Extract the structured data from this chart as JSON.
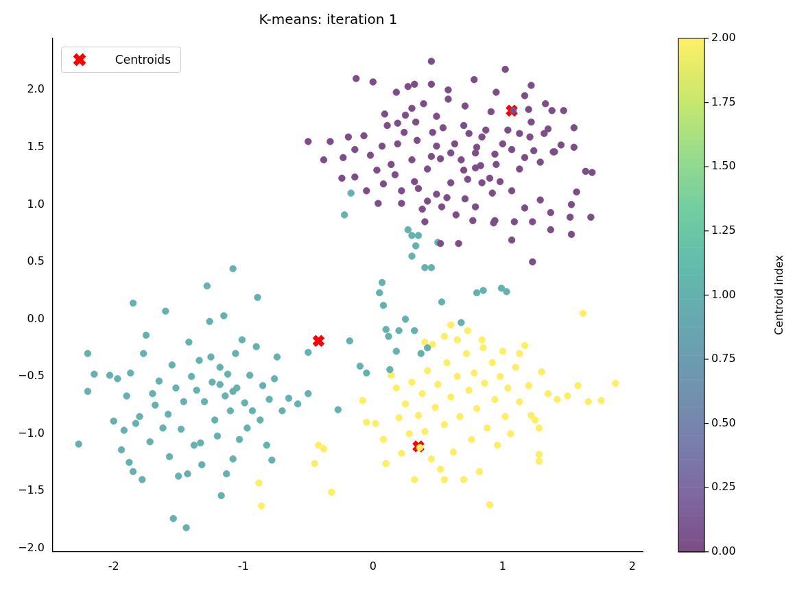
{
  "chart_data": {
    "type": "scatter",
    "title": "K-means: iteration 1",
    "clabel": "Centroid index",
    "clim": [
      0,
      2
    ],
    "cticks": [
      {
        "value": 0,
        "label": "0.00"
      },
      {
        "value": 0.25,
        "label": "0.25"
      },
      {
        "value": 0.5,
        "label": "0.50"
      },
      {
        "value": 0.75,
        "label": "0.75"
      },
      {
        "value": 1,
        "label": "1.00"
      },
      {
        "value": 1.25,
        "label": "1.25"
      },
      {
        "value": 1.5,
        "label": "1.50"
      },
      {
        "value": 1.75,
        "label": "1.75"
      },
      {
        "value": 2,
        "label": "2.00"
      }
    ],
    "xlim": [
      -2.47,
      2.08
    ],
    "ylim": [
      -2.03,
      2.45
    ],
    "xticks": [
      -2,
      -1,
      0,
      1,
      2
    ],
    "yticks": [
      {
        "value": -2,
        "label": "−2.0"
      },
      {
        "value": -1.5,
        "label": "−1.5"
      },
      {
        "value": -1,
        "label": "−1.0"
      },
      {
        "value": -0.5,
        "label": "−0.5"
      },
      {
        "value": 0,
        "label": "0.0"
      },
      {
        "value": 0.5,
        "label": "0.5"
      },
      {
        "value": 1,
        "label": "1.0"
      },
      {
        "value": 1.5,
        "label": "1.5"
      },
      {
        "value": 2,
        "label": "2.0"
      }
    ],
    "legend": "top left",
    "grid": false,
    "series": [
      {
        "marker": "circle",
        "color": "#7c4d87",
        "x": [
          -0.13,
          0.0,
          0.45,
          1.02,
          0.18,
          0.32,
          0.45,
          0.58,
          0.78,
          0.95,
          1.22,
          1.33,
          1.38,
          1.47,
          1.55,
          1.35,
          1.22,
          1.08,
          0.91,
          0.71,
          0.58,
          0.39,
          0.25,
          0.09,
          0.33,
          0.46,
          0.54,
          0.7,
          0.87,
          1.04,
          1.21,
          1.32,
          1.45,
          1.39,
          1.24,
          1.07,
          0.94,
          0.79,
          0.63,
          0.49,
          0.34,
          0.19,
          0.07,
          -0.07,
          -0.19,
          -0.33,
          -0.5,
          -0.38,
          -0.23,
          -0.14,
          -0.02,
          0.14,
          0.3,
          0.42,
          0.52,
          0.68,
          0.83,
          0.95,
          1.13,
          1.29,
          1.4,
          1.55,
          1.69,
          1.53,
          1.52,
          1.37,
          1.29,
          1.17,
          1.07,
          0.98,
          0.84,
          0.73,
          0.6,
          0.49,
          0.35,
          0.22,
          0.08,
          -0.05,
          -0.24,
          -0.14,
          0.04,
          0.22,
          0.38,
          0.53,
          0.64,
          0.79,
          0.94,
          1.09,
          1.23,
          1.07,
          0.93,
          0.77,
          0.66,
          0.52,
          0.4,
          1.68,
          1.53,
          1.37,
          1.23,
          1.57,
          1.64,
          1.13,
          0.92,
          0.71,
          0.57,
          0.42,
          0.32,
          0.17,
          0.03,
          0.9,
          0.79,
          0.84,
          0.74,
          1.0,
          1.17,
          1.2,
          1.17,
          0.27,
          0.3,
          0.49,
          0.19,
          0.11,
          0.24,
          0.8,
          0.6,
          0.45,
          0.7
        ],
        "values": [
          2.1,
          2.07,
          2.25,
          2.18,
          1.98,
          2.05,
          2.05,
          2.0,
          2.09,
          1.98,
          2.04,
          1.88,
          1.82,
          1.82,
          1.67,
          1.66,
          1.72,
          1.82,
          1.81,
          1.86,
          1.92,
          1.88,
          1.78,
          1.79,
          1.72,
          1.63,
          1.67,
          1.69,
          1.65,
          1.65,
          1.59,
          1.62,
          1.52,
          1.46,
          1.47,
          1.48,
          1.44,
          1.45,
          1.53,
          1.51,
          1.56,
          1.53,
          1.51,
          1.6,
          1.59,
          1.55,
          1.55,
          1.39,
          1.41,
          1.48,
          1.43,
          1.35,
          1.39,
          1.31,
          1.4,
          1.39,
          1.34,
          1.35,
          1.31,
          1.37,
          1.46,
          1.5,
          1.28,
          1.0,
          0.89,
          0.93,
          1.04,
          0.97,
          1.12,
          1.2,
          1.19,
          1.22,
          1.19,
          1.09,
          1.14,
          1.12,
          1.18,
          1.12,
          1.23,
          1.24,
          1.01,
          1.01,
          0.96,
          0.98,
          0.91,
          0.98,
          0.86,
          0.85,
          0.5,
          0.69,
          0.84,
          0.86,
          0.66,
          0.66,
          0.85,
          0.89,
          0.74,
          0.78,
          0.85,
          1.11,
          1.29,
          1.62,
          1.1,
          1.05,
          1.06,
          1.03,
          1.2,
          1.26,
          1.3,
          1.23,
          1.32,
          1.59,
          1.62,
          1.53,
          1.41,
          1.83,
          1.95,
          2.03,
          1.84,
          1.77,
          1.71,
          1.69,
          1.63,
          1.5,
          1.45,
          1.42,
          1.3
        ],
        "cvalues": [
          0,
          0,
          0,
          0,
          0,
          0,
          0,
          0,
          0,
          0,
          0,
          0,
          0,
          0,
          0,
          0,
          0,
          0,
          0,
          0,
          0,
          0,
          0,
          0,
          0,
          0,
          0,
          0,
          0,
          0,
          0,
          0,
          0,
          0,
          0,
          0,
          0,
          0,
          0,
          0,
          0,
          0,
          0,
          0,
          0,
          0,
          0,
          0,
          0,
          0,
          0,
          0,
          0,
          0,
          0,
          0,
          0,
          0,
          0,
          0,
          0,
          0,
          0,
          0,
          0,
          0,
          0,
          0,
          0,
          0,
          0,
          0,
          0,
          0,
          0,
          0,
          0,
          0,
          0,
          0,
          0,
          0,
          0,
          0,
          0,
          0,
          0,
          0,
          0,
          0,
          0,
          0,
          0,
          0,
          0,
          0,
          0,
          0,
          0,
          0,
          0,
          0,
          0,
          0,
          0,
          0,
          0,
          0,
          0,
          0,
          0,
          0,
          0,
          0,
          0,
          0,
          0,
          0,
          0,
          0,
          0,
          0,
          0,
          0,
          0,
          0,
          0
        ]
      },
      {
        "marker": "circle",
        "color": "#65b1af",
        "x": [
          -2.27,
          -2.2,
          -2.2,
          -2.15,
          -2.03,
          -2.0,
          -1.97,
          -1.94,
          -1.92,
          -1.9,
          -1.88,
          -1.87,
          -1.85,
          -1.83,
          -1.8,
          -1.78,
          -1.77,
          -1.75,
          -1.72,
          -1.7,
          -1.68,
          -1.65,
          -1.62,
          -1.6,
          -1.58,
          -1.57,
          -1.55,
          -1.52,
          -1.5,
          -1.48,
          -1.46,
          -1.44,
          -1.42,
          -1.4,
          -1.38,
          -1.36,
          -1.34,
          -1.32,
          -1.3,
          -1.28,
          -1.26,
          -1.24,
          -1.22,
          -1.2,
          -1.18,
          -1.17,
          -1.15,
          -1.14,
          -1.12,
          -1.1,
          -1.08,
          -1.06,
          -1.05,
          -1.03,
          -1.01,
          -0.99,
          -0.97,
          -0.95,
          -0.93,
          -0.9,
          -0.89,
          -0.87,
          -0.85,
          -0.82,
          -0.8,
          -0.78,
          -0.76,
          -0.74,
          -0.7,
          -0.65,
          -0.58,
          -0.5,
          -0.5,
          -1.54,
          -1.08,
          -1.13,
          -1.85,
          -1.43,
          -1.33,
          -1.25,
          -1.08,
          -1.18,
          -0.27,
          -0.22,
          -0.18,
          -0.1,
          -0.05,
          0.05,
          0.08,
          0.1,
          0.12,
          0.13,
          0.18,
          0.27,
          0.25,
          0.3,
          0.3,
          0.33,
          0.32,
          0.35,
          0.4,
          0.45,
          0.5,
          0.53,
          0.68,
          0.8,
          0.85,
          0.99,
          1.03,
          -0.17,
          0.07,
          0.37,
          0.42,
          0.2
        ],
        "values": [
          -1.09,
          -0.63,
          -0.3,
          -0.48,
          -0.49,
          -0.89,
          -0.52,
          -1.14,
          -0.97,
          -0.67,
          -1.25,
          -0.47,
          -1.33,
          -0.91,
          -0.85,
          -1.4,
          -0.3,
          -0.14,
          -1.07,
          -0.65,
          -0.75,
          -0.54,
          -0.95,
          0.07,
          -0.83,
          -1.2,
          -0.4,
          -0.6,
          -1.37,
          -0.96,
          -0.72,
          -1.82,
          -0.2,
          -0.5,
          -1.1,
          -0.62,
          -0.36,
          -1.27,
          -0.72,
          0.29,
          -0.02,
          -0.55,
          -0.88,
          -1.02,
          -0.42,
          -1.54,
          0.03,
          -0.67,
          -0.48,
          -0.8,
          -1.22,
          -0.3,
          -0.6,
          -1.05,
          -0.18,
          -0.73,
          -0.95,
          -0.49,
          -0.8,
          -0.24,
          0.19,
          -0.88,
          -0.58,
          -1.1,
          -0.7,
          -1.23,
          -0.52,
          -0.33,
          -0.8,
          -0.69,
          -0.74,
          -0.65,
          -0.29,
          -1.74,
          0.44,
          -1.35,
          0.14,
          -1.35,
          -1.08,
          -0.33,
          -0.63,
          -0.57,
          -0.79,
          0.91,
          -0.19,
          -0.41,
          -0.47,
          0.23,
          0.12,
          -0.09,
          -0.15,
          -0.44,
          -0.28,
          0.78,
          0.0,
          0.73,
          0.55,
          0.64,
          -0.1,
          0.73,
          0.45,
          0.45,
          0.67,
          0.15,
          -0.03,
          0.23,
          0.25,
          0.27,
          0.24,
          1.1,
          0.32,
          -0.3,
          -0.25,
          -0.1
        ],
        "cvalues": [
          1,
          1,
          1,
          1,
          1,
          1,
          1,
          1,
          1,
          1,
          1,
          1,
          1,
          1,
          1,
          1,
          1,
          1,
          1,
          1,
          1,
          1,
          1,
          1,
          1,
          1,
          1,
          1,
          1,
          1,
          1,
          1,
          1,
          1,
          1,
          1,
          1,
          1,
          1,
          1,
          1,
          1,
          1,
          1,
          1,
          1,
          1,
          1,
          1,
          1,
          1,
          1,
          1,
          1,
          1,
          1,
          1,
          1,
          1,
          1,
          1,
          1,
          1,
          1,
          1,
          1,
          1,
          1,
          1,
          1,
          1,
          1,
          1,
          1,
          1,
          1,
          1,
          1,
          1,
          1,
          1,
          1,
          1,
          1,
          1,
          1,
          1,
          1,
          1,
          1,
          1,
          1,
          1,
          1,
          1,
          1,
          1,
          1,
          1,
          1,
          1,
          1,
          1,
          1,
          1,
          1,
          1,
          1,
          1,
          1,
          1,
          1,
          1,
          1
        ]
      },
      {
        "marker": "circle",
        "color": "#feee66",
        "x": [
          -0.08,
          -0.05,
          0.02,
          0.08,
          0.1,
          0.14,
          0.18,
          0.2,
          0.22,
          0.25,
          0.28,
          0.3,
          0.32,
          0.35,
          0.38,
          0.4,
          0.42,
          0.45,
          0.48,
          0.5,
          0.52,
          0.55,
          0.57,
          0.6,
          0.62,
          0.65,
          0.67,
          0.7,
          0.72,
          0.74,
          0.76,
          0.78,
          0.8,
          0.82,
          0.84,
          0.86,
          0.88,
          0.9,
          0.92,
          0.94,
          0.96,
          0.98,
          1.0,
          1.02,
          1.04,
          1.06,
          1.1,
          1.13,
          1.17,
          1.2,
          1.25,
          1.28,
          1.3,
          1.35,
          1.42,
          1.5,
          1.58,
          1.62,
          1.66,
          1.76,
          1.87,
          1.28,
          1.28,
          0.6,
          0.65,
          0.55,
          0.4,
          0.85,
          -0.86,
          -0.88,
          -0.45,
          -0.42,
          -0.38,
          -0.32,
          0.46,
          0.73,
          1.13,
          1.22,
          0.36,
          0.55
        ],
        "values": [
          -0.71,
          -0.9,
          -0.91,
          -1.05,
          -1.26,
          -0.49,
          -0.6,
          -0.86,
          -1.17,
          -0.74,
          -1.0,
          -0.55,
          -1.4,
          -0.84,
          -0.65,
          -0.98,
          -0.45,
          -1.22,
          -0.77,
          -0.57,
          -1.31,
          -0.92,
          -0.38,
          -0.68,
          -1.16,
          -0.5,
          -0.85,
          -1.4,
          -0.3,
          -0.62,
          -1.05,
          -0.47,
          -0.78,
          -1.33,
          -0.18,
          -0.56,
          -0.95,
          -1.62,
          -0.38,
          -0.7,
          -1.1,
          -0.5,
          -0.28,
          -0.85,
          -0.6,
          -1.0,
          -0.42,
          -0.72,
          -0.23,
          -0.58,
          -0.88,
          -1.24,
          -0.46,
          -0.65,
          -0.7,
          -0.67,
          -0.58,
          0.05,
          -0.72,
          -0.71,
          -0.56,
          -1.18,
          -0.95,
          -0.05,
          -0.18,
          -0.15,
          -0.2,
          -0.25,
          -1.63,
          -1.43,
          -1.26,
          -1.1,
          -1.13,
          -1.51,
          -0.22,
          -0.1,
          -0.3,
          -0.84,
          -1.12,
          -1.4
        ],
        "cvalues": [
          2,
          2,
          2,
          2,
          2,
          2,
          2,
          2,
          2,
          2,
          2,
          2,
          2,
          2,
          2,
          2,
          2,
          2,
          2,
          2,
          2,
          2,
          2,
          2,
          2,
          2,
          2,
          2,
          2,
          2,
          2,
          2,
          2,
          2,
          2,
          2,
          2,
          2,
          2,
          2,
          2,
          2,
          2,
          2,
          2,
          2,
          2,
          2,
          2,
          2,
          2,
          2,
          2,
          2,
          2,
          2,
          2,
          2,
          2,
          2,
          2,
          2,
          2,
          2,
          2,
          2,
          2,
          2,
          2,
          2,
          2,
          2,
          2,
          2,
          2,
          2,
          2,
          2,
          2,
          2
        ]
      },
      {
        "name": "Centroids",
        "color": "#ff0000",
        "marker": "cross",
        "x": [
          1.07,
          -0.42,
          0.35
        ],
        "values": [
          1.82,
          -0.19,
          -1.11
        ]
      }
    ]
  }
}
